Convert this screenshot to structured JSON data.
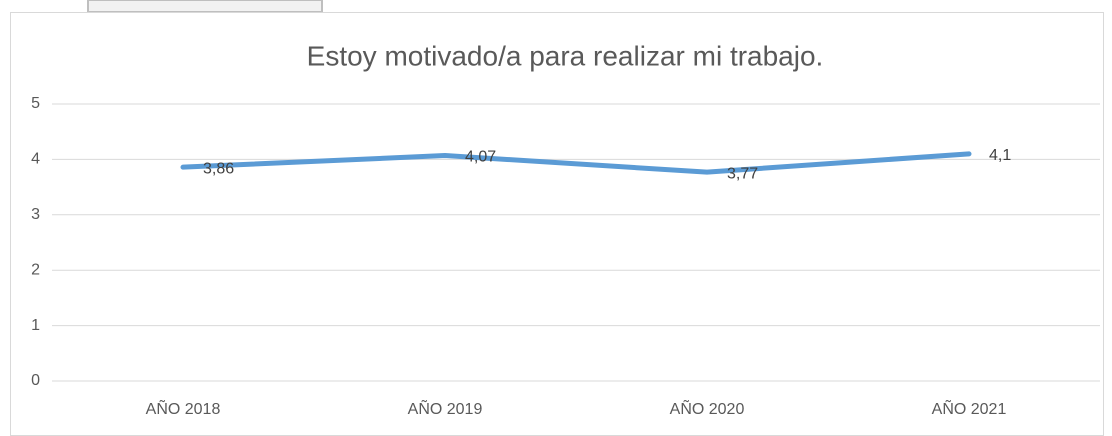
{
  "chart_data": {
    "type": "line",
    "title": "Estoy motivado/a para realizar mi trabajo.",
    "categories": [
      "AÑO 2018",
      "AÑO 2019",
      "AÑO 2020",
      "AÑO 2021"
    ],
    "series": [
      {
        "color": "#5b9bd5",
        "values": [
          3.86,
          4.07,
          3.77,
          4.1
        ],
        "value_labels": [
          "3,86",
          "4,07",
          "3,77",
          "4,1"
        ]
      }
    ],
    "ylim": [
      0,
      5
    ],
    "yticks": [
      0,
      1,
      2,
      3,
      4,
      5
    ],
    "grid": true
  }
}
